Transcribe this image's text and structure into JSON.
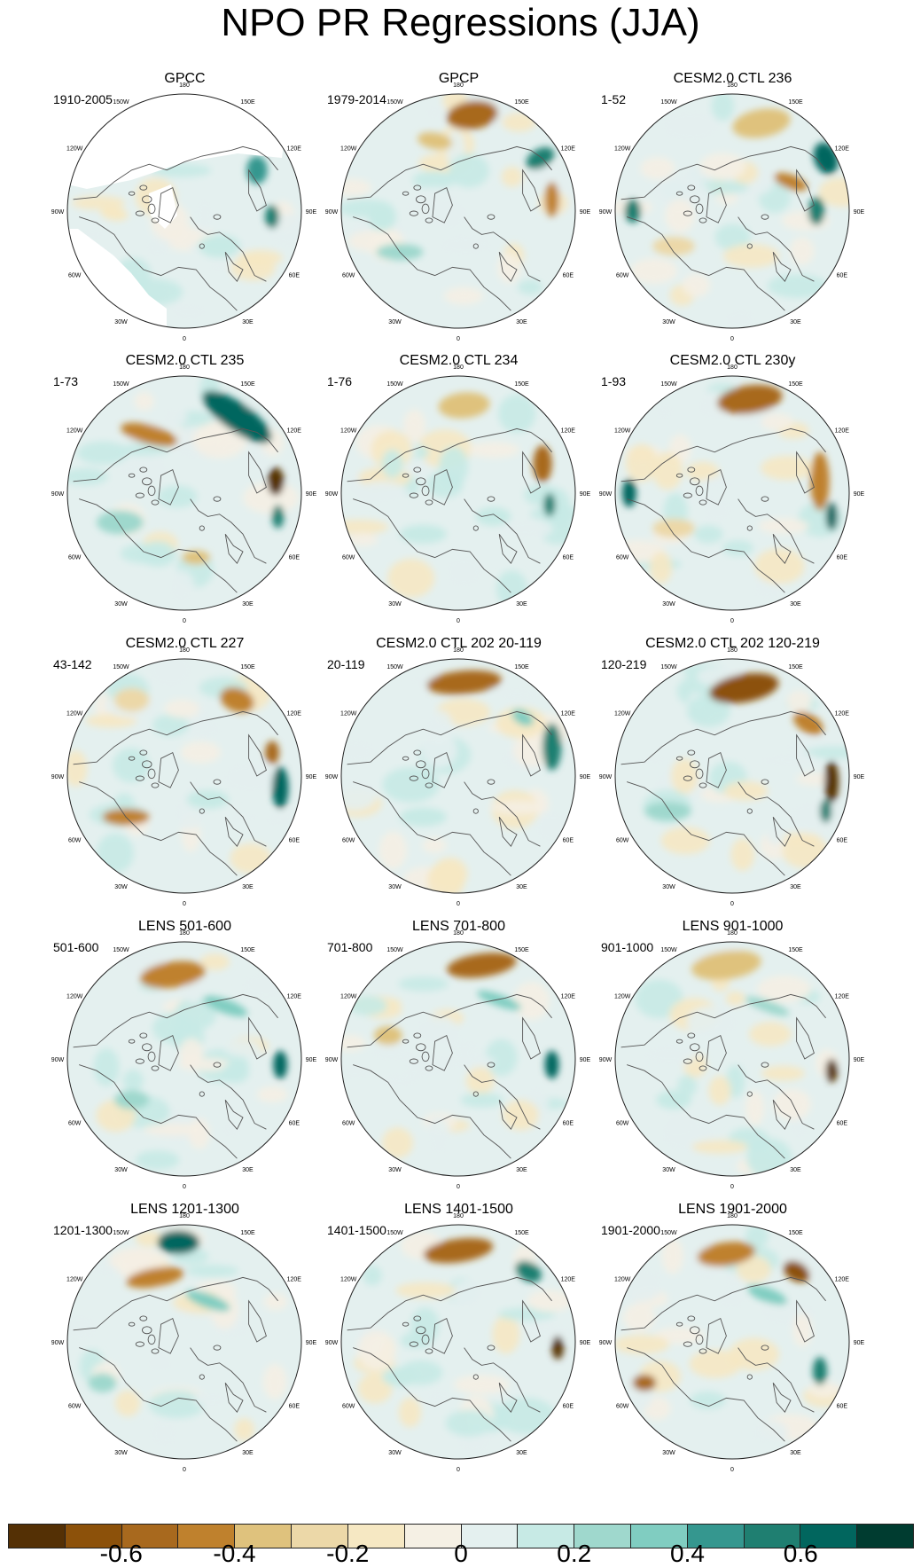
{
  "title": "NPO PR Regressions (JJA)",
  "map_labels": {
    "longitudes": [
      "180",
      "150E",
      "120E",
      "90E",
      "60E",
      "30E",
      "0",
      "30W",
      "60W",
      "90W",
      "120W",
      "150W"
    ]
  },
  "panels": [
    {
      "title": "GPCC",
      "range": "1910-2005",
      "variant": "obs"
    },
    {
      "title": "GPCP",
      "range": "1979-2014",
      "variant": "gpcp"
    },
    {
      "title": "CESM2.0 CTL 236",
      "range": "1-52",
      "variant": "m1"
    },
    {
      "title": "CESM2.0 CTL 235",
      "range": "1-73",
      "variant": "m2"
    },
    {
      "title": "CESM2.0 CTL 234",
      "range": "1-76",
      "variant": "m3"
    },
    {
      "title": "CESM2.0 CTL 230y",
      "range": "1-93",
      "variant": "m4"
    },
    {
      "title": "CESM2.0 CTL 227",
      "range": "43-142",
      "variant": "m5"
    },
    {
      "title": "CESM2.0 CTL 202 20-119",
      "range": "20-119",
      "variant": "m6"
    },
    {
      "title": "CESM2.0 CTL 202 120-219",
      "range": "120-219",
      "variant": "m7"
    },
    {
      "title": "LENS 501-600",
      "range": "501-600",
      "variant": "l1"
    },
    {
      "title": "LENS 701-800",
      "range": "701-800",
      "variant": "l2"
    },
    {
      "title": "LENS 901-1000",
      "range": "901-1000",
      "variant": "l3"
    },
    {
      "title": "LENS 1201-1300",
      "range": "1201-1300",
      "variant": "l4"
    },
    {
      "title": "LENS 1401-1500",
      "range": "1401-1500",
      "variant": "l5"
    },
    {
      "title": "LENS 1901-2000",
      "range": "1901-2000",
      "variant": "l6"
    }
  ],
  "colorbar": {
    "colors": [
      "#543005",
      "#8c510a",
      "#a8691e",
      "#bf812d",
      "#dfc27d",
      "#ecd8a8",
      "#f6e8c3",
      "#f5f0e4",
      "#e4f0ef",
      "#c7eae5",
      "#9fd8cd",
      "#80cdc1",
      "#35978f",
      "#1f7f71",
      "#01665e",
      "#003c30"
    ],
    "labels": [
      "-0.6",
      "-0.4",
      "-0.2",
      "0",
      "0.2",
      "0.4",
      "0.6"
    ],
    "label_values": [
      -0.6,
      -0.4,
      -0.2,
      0,
      0.2,
      0.4,
      0.6
    ],
    "range": [
      -0.8,
      0.8
    ]
  }
}
